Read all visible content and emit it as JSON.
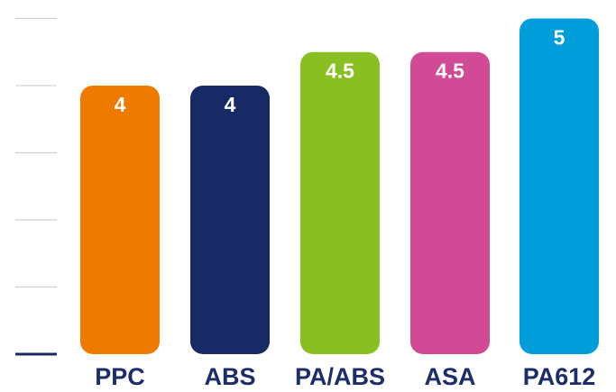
{
  "chart_data": {
    "type": "bar",
    "categories": [
      "PPC",
      "ABS",
      "PA/ABS",
      "ASA",
      "PA612"
    ],
    "values": [
      4,
      4,
      4.5,
      4.5,
      5
    ],
    "value_labels": [
      "4",
      "4",
      "4.5",
      "4.5",
      "5"
    ],
    "colors": [
      "#ee7a00",
      "#172a66",
      "#8abf22",
      "#d24a95",
      "#009ddb"
    ],
    "category_label_color": "#1b2d6b",
    "grid_color": "#cfcfcf",
    "baseline_color": "#172a66",
    "grid": true,
    "ylim": [
      0,
      5.1
    ],
    "gridlines": [
      1,
      2,
      3,
      4,
      5
    ],
    "title": "",
    "xlabel": "",
    "ylabel": ""
  }
}
